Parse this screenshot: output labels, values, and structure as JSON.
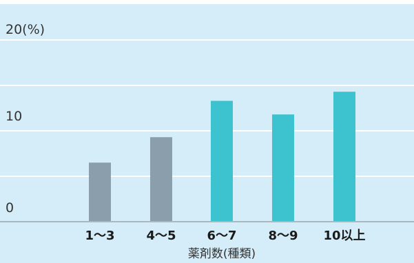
{
  "chart_data": {
    "type": "bar",
    "categories": [
      "1〜3",
      "4〜5",
      "6〜7",
      "8〜9",
      "10以上"
    ],
    "values": [
      6.5,
      9.3,
      13.3,
      11.8,
      14.3
    ],
    "bar_colors": [
      "#8a9fab",
      "#8a9fab",
      "#3cc3cf",
      "#3cc3cf",
      "#3cc3cf"
    ],
    "ylim": [
      0,
      20
    ],
    "y_ticks": [
      {
        "value": 0,
        "label": "0"
      },
      {
        "value": 10,
        "label": "10"
      },
      {
        "value": 20,
        "label": "20(%)"
      }
    ],
    "gridlines": [
      5,
      10,
      15,
      20
    ],
    "xlabel": "薬剤数(種類)",
    "grid": true,
    "background_color": "#d4edf8",
    "gridline_color": "#ffffff",
    "baseline_color": "#a9b7bf"
  }
}
